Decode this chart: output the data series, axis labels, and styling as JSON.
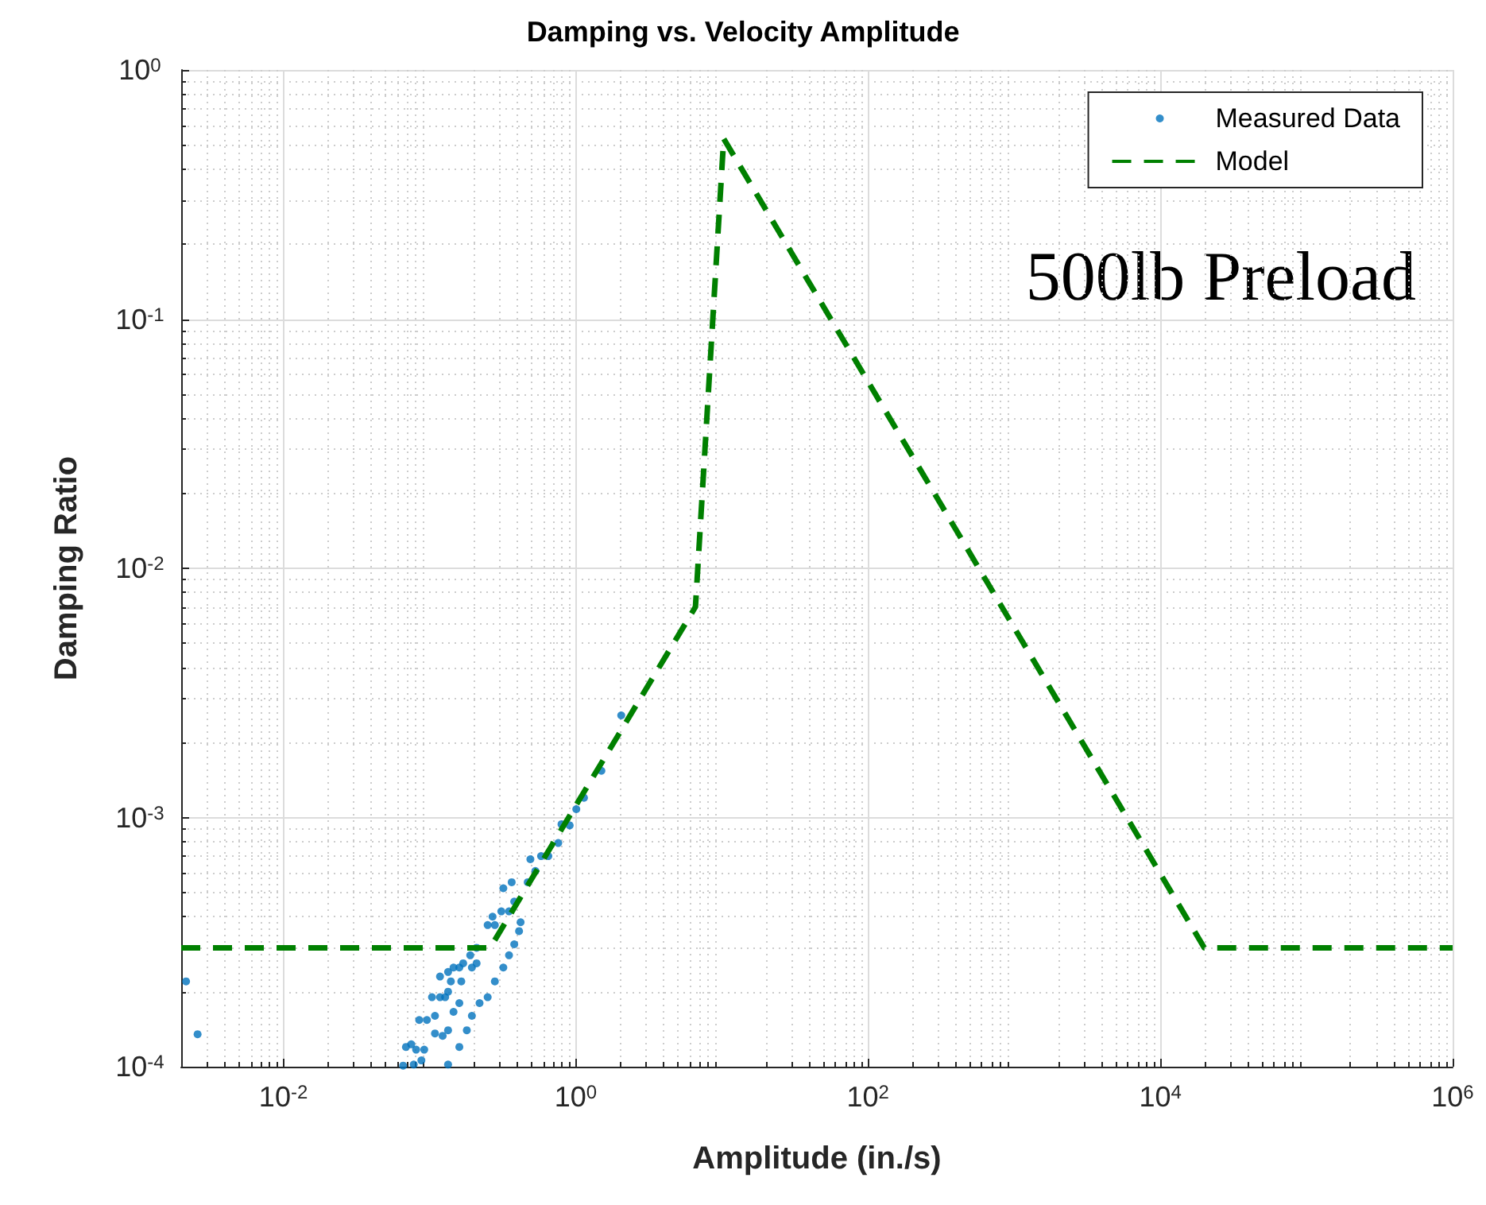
{
  "chart_data": {
    "type": "scatter",
    "title": "Damping vs. Velocity Amplitude",
    "xlabel": "Amplitude (in./s)",
    "ylabel": "Damping Ratio",
    "annotations": [
      "500lb Preload"
    ],
    "log": "xy",
    "grid": true,
    "legend": "top right",
    "marker": "circle",
    "xlim": [
      0.002,
      1000000
    ],
    "ylim": [
      0.0001,
      1
    ],
    "xticks": [
      {
        "value": 0.01,
        "label": "10$^{-2}$"
      },
      {
        "value": 1,
        "label": "10$^{0}$"
      },
      {
        "value": 100,
        "label": "10$^{2}$"
      },
      {
        "value": 10000,
        "label": "10$^{4}$"
      },
      {
        "value": 1000000,
        "label": "10$^{6}$"
      }
    ],
    "yticks": [
      {
        "value": 0.0001,
        "label": "10$^{-4}$"
      },
      {
        "value": 0.001,
        "label": "10$^{-3}$"
      },
      {
        "value": 0.01,
        "label": "10$^{-2}$"
      },
      {
        "value": 0.1,
        "label": "10$^{-1}$"
      },
      {
        "value": 1,
        "label": "10$^{0}$"
      }
    ],
    "series": [
      {
        "name": "Measured Data",
        "color": "#0072bd",
        "x": [
          2.05,
          1.5,
          1.14,
          1.01,
          0.91,
          0.8,
          0.76,
          0.65,
          0.58,
          0.49,
          0.53,
          0.47,
          0.365,
          0.32,
          0.38,
          0.35,
          0.31,
          0.27,
          0.28,
          0.25,
          0.42,
          0.41,
          0.38,
          0.35,
          0.32,
          0.21,
          0.19,
          0.21,
          0.195,
          0.17,
          0.16,
          0.134,
          0.14,
          0.146,
          0.118,
          0.134,
          0.128,
          0.28,
          0.25,
          0.22,
          0.195,
          0.18,
          0.16,
          0.134,
          0.165,
          0.16,
          0.146,
          0.134,
          0.123,
          0.109,
          0.118,
          0.104,
          0.109,
          0.096,
          0.085,
          0.092,
          0.081,
          0.088,
          0.078,
          0.075,
          0.069,
          0.066,
          0.00216,
          0.00259
        ],
        "values": [
          0.00257,
          0.00154,
          0.0012,
          0.00108,
          0.00093,
          0.00094,
          0.00079,
          0.0007,
          0.0007,
          0.00068,
          0.00061,
          0.00055,
          0.00055,
          0.00052,
          0.00046,
          0.00042,
          0.00042,
          0.0004,
          0.00037,
          0.00037,
          0.00038,
          0.00035,
          0.00031,
          0.00028,
          0.00025,
          0.0003,
          0.00028,
          0.00026,
          0.00025,
          0.00026,
          0.00025,
          0.00024,
          0.00022,
          0.00025,
          0.00023,
          0.0002,
          0.00019,
          0.00022,
          0.00019,
          0.00018,
          0.00016,
          0.00014,
          0.00012,
          0.000102,
          0.00022,
          0.00018,
          0.000166,
          0.00014,
          0.000133,
          0.000136,
          0.00019,
          0.00019,
          0.00016,
          0.000154,
          0.000154,
          0.000117,
          0.000117,
          0.000106,
          0.000102,
          0.000123,
          0.00012,
          0.000101,
          0.00022,
          0.000135
        ]
      },
      {
        "name": "Model",
        "type": "line",
        "color": "#008000",
        "marker": "none",
        "line_style": "dashed",
        "x": [
          0.002,
          0.26,
          6.6,
          10.3,
          20000,
          1000000
        ],
        "values": [
          0.0003,
          0.0003,
          0.007,
          0.53,
          0.0003,
          0.0003
        ]
      }
    ]
  }
}
